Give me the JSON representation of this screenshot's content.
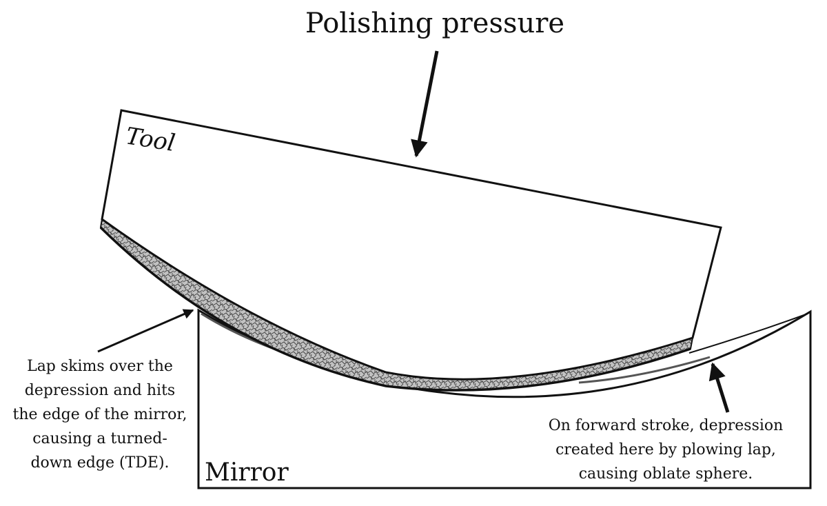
{
  "title": "Polishing pressure",
  "tool_label": "Tool",
  "mirror_label": "Mirror",
  "left_note": {
    "lines": [
      "Lap skims over the",
      "depression and hits",
      "the edge of the mirror,",
      "causing a turned-",
      "down edge (TDE)."
    ]
  },
  "right_note": {
    "lines": [
      "On forward stroke, depression",
      "created here by plowing lap,",
      "causing oblate sphere."
    ]
  },
  "colors": {
    "line": "#111111",
    "lap_fill": "#b4b4b4",
    "lap_texture": "#4a4a4a",
    "background": "#ffffff"
  }
}
